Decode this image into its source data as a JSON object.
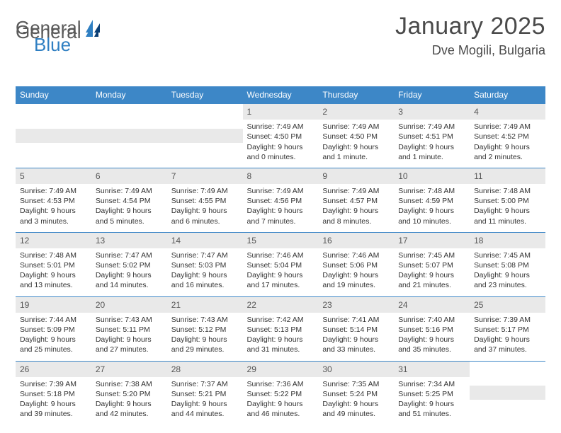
{
  "brand": {
    "part1": "General",
    "part2": "Blue"
  },
  "title": "January 2025",
  "location": "Dve Mogili, Bulgaria",
  "colors": {
    "header_bg": "#3d87c7",
    "header_text": "#ffffff",
    "daynum_bg": "#e9e9e9",
    "rule": "#3d87c7",
    "brand_blue": "#2f7fc2",
    "brand_gray": "#5a5a5a",
    "body_text": "#333333",
    "page_bg": "#ffffff"
  },
  "typography": {
    "month_title_fontsize": 34,
    "location_fontsize": 18,
    "weekday_fontsize": 12,
    "daynum_fontsize": 12,
    "body_fontsize": 10.5
  },
  "weekdays": [
    "Sunday",
    "Monday",
    "Tuesday",
    "Wednesday",
    "Thursday",
    "Friday",
    "Saturday"
  ],
  "layout": {
    "first_weekday_index": 3,
    "days_in_month": 31,
    "columns": 7
  },
  "days": [
    {
      "n": "1",
      "sunrise": "Sunrise: 7:49 AM",
      "sunset": "Sunset: 4:50 PM",
      "daylight": "Daylight: 9 hours and 0 minutes."
    },
    {
      "n": "2",
      "sunrise": "Sunrise: 7:49 AM",
      "sunset": "Sunset: 4:50 PM",
      "daylight": "Daylight: 9 hours and 1 minute."
    },
    {
      "n": "3",
      "sunrise": "Sunrise: 7:49 AM",
      "sunset": "Sunset: 4:51 PM",
      "daylight": "Daylight: 9 hours and 1 minute."
    },
    {
      "n": "4",
      "sunrise": "Sunrise: 7:49 AM",
      "sunset": "Sunset: 4:52 PM",
      "daylight": "Daylight: 9 hours and 2 minutes."
    },
    {
      "n": "5",
      "sunrise": "Sunrise: 7:49 AM",
      "sunset": "Sunset: 4:53 PM",
      "daylight": "Daylight: 9 hours and 3 minutes."
    },
    {
      "n": "6",
      "sunrise": "Sunrise: 7:49 AM",
      "sunset": "Sunset: 4:54 PM",
      "daylight": "Daylight: 9 hours and 5 minutes."
    },
    {
      "n": "7",
      "sunrise": "Sunrise: 7:49 AM",
      "sunset": "Sunset: 4:55 PM",
      "daylight": "Daylight: 9 hours and 6 minutes."
    },
    {
      "n": "8",
      "sunrise": "Sunrise: 7:49 AM",
      "sunset": "Sunset: 4:56 PM",
      "daylight": "Daylight: 9 hours and 7 minutes."
    },
    {
      "n": "9",
      "sunrise": "Sunrise: 7:49 AM",
      "sunset": "Sunset: 4:57 PM",
      "daylight": "Daylight: 9 hours and 8 minutes."
    },
    {
      "n": "10",
      "sunrise": "Sunrise: 7:48 AM",
      "sunset": "Sunset: 4:59 PM",
      "daylight": "Daylight: 9 hours and 10 minutes."
    },
    {
      "n": "11",
      "sunrise": "Sunrise: 7:48 AM",
      "sunset": "Sunset: 5:00 PM",
      "daylight": "Daylight: 9 hours and 11 minutes."
    },
    {
      "n": "12",
      "sunrise": "Sunrise: 7:48 AM",
      "sunset": "Sunset: 5:01 PM",
      "daylight": "Daylight: 9 hours and 13 minutes."
    },
    {
      "n": "13",
      "sunrise": "Sunrise: 7:47 AM",
      "sunset": "Sunset: 5:02 PM",
      "daylight": "Daylight: 9 hours and 14 minutes."
    },
    {
      "n": "14",
      "sunrise": "Sunrise: 7:47 AM",
      "sunset": "Sunset: 5:03 PM",
      "daylight": "Daylight: 9 hours and 16 minutes."
    },
    {
      "n": "15",
      "sunrise": "Sunrise: 7:46 AM",
      "sunset": "Sunset: 5:04 PM",
      "daylight": "Daylight: 9 hours and 17 minutes."
    },
    {
      "n": "16",
      "sunrise": "Sunrise: 7:46 AM",
      "sunset": "Sunset: 5:06 PM",
      "daylight": "Daylight: 9 hours and 19 minutes."
    },
    {
      "n": "17",
      "sunrise": "Sunrise: 7:45 AM",
      "sunset": "Sunset: 5:07 PM",
      "daylight": "Daylight: 9 hours and 21 minutes."
    },
    {
      "n": "18",
      "sunrise": "Sunrise: 7:45 AM",
      "sunset": "Sunset: 5:08 PM",
      "daylight": "Daylight: 9 hours and 23 minutes."
    },
    {
      "n": "19",
      "sunrise": "Sunrise: 7:44 AM",
      "sunset": "Sunset: 5:09 PM",
      "daylight": "Daylight: 9 hours and 25 minutes."
    },
    {
      "n": "20",
      "sunrise": "Sunrise: 7:43 AM",
      "sunset": "Sunset: 5:11 PM",
      "daylight": "Daylight: 9 hours and 27 minutes."
    },
    {
      "n": "21",
      "sunrise": "Sunrise: 7:43 AM",
      "sunset": "Sunset: 5:12 PM",
      "daylight": "Daylight: 9 hours and 29 minutes."
    },
    {
      "n": "22",
      "sunrise": "Sunrise: 7:42 AM",
      "sunset": "Sunset: 5:13 PM",
      "daylight": "Daylight: 9 hours and 31 minutes."
    },
    {
      "n": "23",
      "sunrise": "Sunrise: 7:41 AM",
      "sunset": "Sunset: 5:14 PM",
      "daylight": "Daylight: 9 hours and 33 minutes."
    },
    {
      "n": "24",
      "sunrise": "Sunrise: 7:40 AM",
      "sunset": "Sunset: 5:16 PM",
      "daylight": "Daylight: 9 hours and 35 minutes."
    },
    {
      "n": "25",
      "sunrise": "Sunrise: 7:39 AM",
      "sunset": "Sunset: 5:17 PM",
      "daylight": "Daylight: 9 hours and 37 minutes."
    },
    {
      "n": "26",
      "sunrise": "Sunrise: 7:39 AM",
      "sunset": "Sunset: 5:18 PM",
      "daylight": "Daylight: 9 hours and 39 minutes."
    },
    {
      "n": "27",
      "sunrise": "Sunrise: 7:38 AM",
      "sunset": "Sunset: 5:20 PM",
      "daylight": "Daylight: 9 hours and 42 minutes."
    },
    {
      "n": "28",
      "sunrise": "Sunrise: 7:37 AM",
      "sunset": "Sunset: 5:21 PM",
      "daylight": "Daylight: 9 hours and 44 minutes."
    },
    {
      "n": "29",
      "sunrise": "Sunrise: 7:36 AM",
      "sunset": "Sunset: 5:22 PM",
      "daylight": "Daylight: 9 hours and 46 minutes."
    },
    {
      "n": "30",
      "sunrise": "Sunrise: 7:35 AM",
      "sunset": "Sunset: 5:24 PM",
      "daylight": "Daylight: 9 hours and 49 minutes."
    },
    {
      "n": "31",
      "sunrise": "Sunrise: 7:34 AM",
      "sunset": "Sunset: 5:25 PM",
      "daylight": "Daylight: 9 hours and 51 minutes."
    }
  ]
}
